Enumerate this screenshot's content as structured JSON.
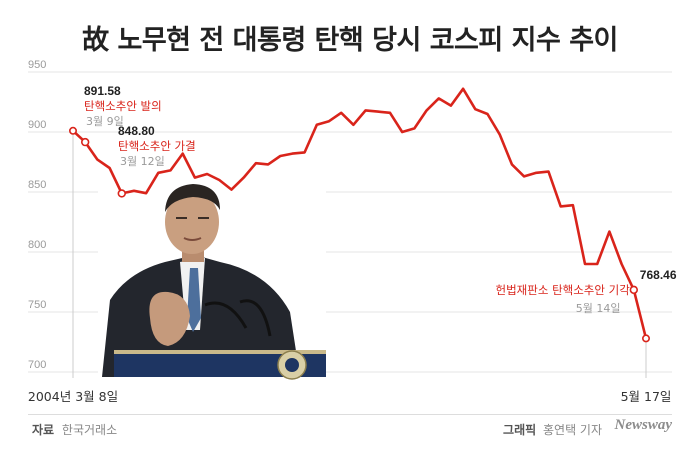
{
  "title": "故 노무현 전 대통령 탄핵 당시 코스피 지수 추이",
  "footer": {
    "source_label": "자료",
    "source": "한국거래소",
    "credit_label": "그래픽",
    "credit": "홍연택 기자",
    "brand": "Newsway"
  },
  "colors": {
    "line": "#d9241b",
    "event": "#d9241b",
    "axis_text": "#9a9a9a",
    "grid": "#e6e6e6"
  },
  "chart_data": {
    "type": "line",
    "title": "故 노무현 전 대통령 탄핵 당시 코스피 지수 추이",
    "xlabel": "",
    "ylabel": "",
    "ylim": [
      700,
      950
    ],
    "yticks": [
      950,
      900,
      850,
      800,
      750,
      700
    ],
    "grid": true,
    "x_tick_labels": [
      {
        "index": 0,
        "label": "2004년 3월 8일"
      },
      {
        "index": 47,
        "label": "5월 17일"
      }
    ],
    "values": [
      901,
      891.58,
      877,
      870,
      848.8,
      851,
      849,
      866,
      868,
      882,
      862,
      865,
      860,
      852,
      862,
      874,
      873,
      880,
      882,
      883,
      906,
      909,
      916,
      906,
      918,
      917,
      916,
      900,
      903,
      918,
      928,
      922,
      936,
      919,
      915,
      898,
      873,
      863,
      866,
      867,
      838,
      839,
      790,
      790,
      817,
      790,
      768.46,
      728
    ],
    "annotations": [
      {
        "index": 1,
        "value": "891.58",
        "event": "탄핵소추안 발의",
        "date": "3월 9일"
      },
      {
        "index": 4,
        "value": "848.80",
        "event": "탄핵소추안 가결",
        "date": "3월 12일"
      },
      {
        "index": 46,
        "value": "768.46",
        "event": "헌법재판소 탄핵소추안 기각",
        "date": "5월 14일"
      }
    ]
  }
}
